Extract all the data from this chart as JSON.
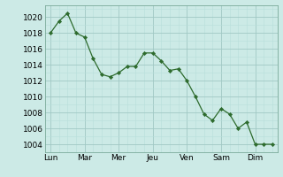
{
  "x_values": [
    0,
    0.5,
    1,
    1.5,
    2,
    2.5,
    3,
    3.5,
    4,
    4.5,
    5,
    5.5,
    6,
    6.5,
    7,
    7.5,
    8,
    8.5,
    9,
    9.5,
    10,
    10.5,
    11,
    11.5,
    12,
    12.5,
    13
  ],
  "y_values": [
    1018,
    1019.5,
    1020.5,
    1018,
    1017.5,
    1014.8,
    1012.8,
    1012.5,
    1013,
    1013.8,
    1013.8,
    1015.5,
    1015.5,
    1014.5,
    1013.3,
    1013.5,
    1012,
    1010,
    1007.8,
    1007,
    1008.5,
    1007.8,
    1006,
    1006.8,
    1004,
    1004,
    1004
  ],
  "day_positions": [
    0,
    2,
    4,
    6,
    8,
    10,
    12
  ],
  "day_labels": [
    "Lun",
    "Mar",
    "Mer",
    "Jeu",
    "Ven",
    "Sam",
    "Dim"
  ],
  "y_ticks": [
    1004,
    1006,
    1008,
    1010,
    1012,
    1014,
    1016,
    1018,
    1020
  ],
  "ylim": [
    1003.0,
    1021.5
  ],
  "xlim": [
    -0.3,
    13.3
  ],
  "line_color": "#2d6b2d",
  "marker_color": "#2d6b2d",
  "bg_color": "#cceae6",
  "grid_major_color": "#a0c8c4",
  "grid_minor_color": "#b8deda",
  "tick_fontsize": 6.5,
  "spine_color": "#7aaa9a"
}
